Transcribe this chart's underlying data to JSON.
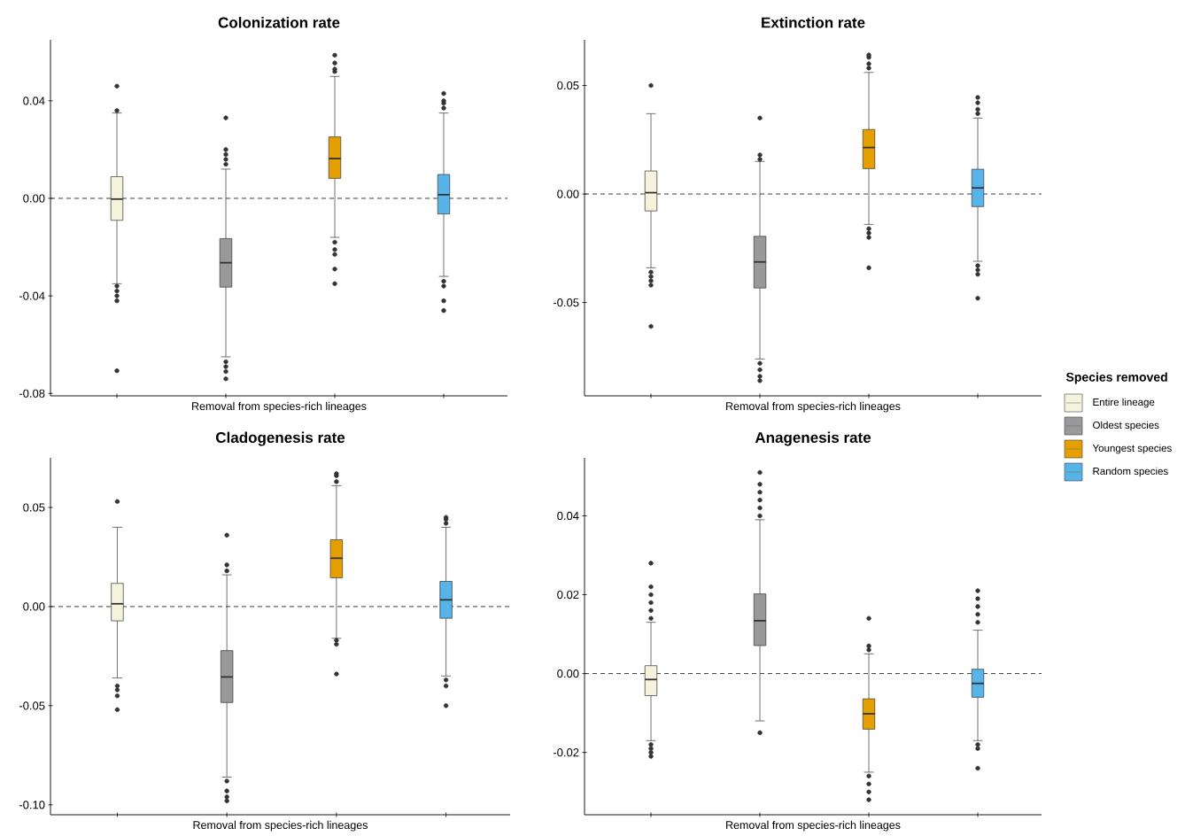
{
  "chart_data": [
    {
      "type": "box",
      "title": "Colonization rate",
      "xlabel": "Removal from species-rich lineages",
      "categories": [
        null,
        null,
        null,
        null
      ],
      "ylim": [
        -0.081,
        0.065
      ],
      "yticks": [
        {
          "value": -0.08,
          "label": "-0.08"
        },
        {
          "value": -0.04,
          "label": "-0.04"
        },
        {
          "value": 0,
          "label": "0.00"
        },
        {
          "value": 0.04,
          "label": "0.04"
        }
      ],
      "ref_lines": [
        {
          "axis": "y",
          "value": 0,
          "line_style": "dashed"
        }
      ],
      "series": [
        {
          "color": "#f4f4dc",
          "boxes": [
            {
              "low": -0.035,
              "q1": -0.009,
              "median": -0.0003,
              "q3": 0.0089,
              "high": 0.035,
              "outliers": [
                0.036,
                0.046,
                -0.036,
                -0.038,
                -0.04,
                -0.042,
                -0.0707
              ]
            },
            null,
            null,
            null
          ]
        },
        {
          "color": "#999999",
          "boxes": [
            null,
            {
              "low": -0.065,
              "q1": -0.0364,
              "median": -0.0264,
              "q3": -0.0165,
              "high": 0.012,
              "outliers": [
                0.014,
                0.016,
                0.018,
                0.02,
                0.033,
                -0.067,
                -0.069,
                -0.071,
                -0.074
              ]
            },
            null,
            null
          ]
        },
        {
          "color": "#e69f00",
          "boxes": [
            null,
            null,
            {
              "low": -0.016,
              "q1": 0.0082,
              "median": 0.0163,
              "q3": 0.0252,
              "high": 0.05,
              "outliers": [
                0.052,
                0.053,
                0.0555,
                0.0587,
                -0.018,
                -0.021,
                -0.023,
                -0.029,
                -0.035
              ]
            },
            null
          ]
        },
        {
          "color": "#56b4e9",
          "boxes": [
            null,
            null,
            null,
            {
              "low": -0.032,
              "q1": -0.0064,
              "median": 0.0015,
              "q3": 0.0098,
              "high": 0.035,
              "outliers": [
                0.037,
                0.039,
                0.04,
                0.043,
                -0.034,
                -0.036,
                -0.042,
                -0.046
              ]
            }
          ]
        }
      ]
    },
    {
      "type": "box",
      "title": "Extinction rate",
      "xlabel": "Removal from species-rich lineages",
      "categories": [
        null,
        null,
        null,
        null
      ],
      "legend": "right",
      "legend_title": "Species removed",
      "ylim": [
        -0.093,
        0.071
      ],
      "yticks": [
        {
          "value": -0.05,
          "label": "-0.05"
        },
        {
          "value": 0,
          "label": "0.00"
        },
        {
          "value": 0.05,
          "label": "0.05"
        }
      ],
      "ref_lines": [
        {
          "axis": "y",
          "value": 0,
          "line_style": "dashed"
        }
      ],
      "series": [
        {
          "name": "Entire lineage",
          "color": "#f4f4dc",
          "boxes": [
            {
              "low": -0.034,
              "q1": -0.0078,
              "median": 0.0006,
              "q3": 0.0106,
              "high": 0.037,
              "outliers": [
                0.05,
                -0.036,
                -0.038,
                -0.04,
                -0.042,
                -0.061
              ]
            },
            null,
            null,
            null
          ]
        },
        {
          "name": "Oldest species",
          "color": "#999999",
          "boxes": [
            null,
            {
              "low": -0.076,
              "q1": -0.0433,
              "median": -0.0313,
              "q3": -0.0195,
              "high": 0.015,
              "outliers": [
                0.016,
                0.018,
                0.035,
                -0.078,
                -0.081,
                -0.084,
                -0.086
              ]
            },
            null,
            null
          ]
        },
        {
          "name": "Youngest species",
          "color": "#e69f00",
          "boxes": [
            null,
            null,
            {
              "low": -0.014,
              "q1": 0.0117,
              "median": 0.0214,
              "q3": 0.0297,
              "high": 0.056,
              "outliers": [
                0.058,
                0.06,
                0.063,
                0.064,
                -0.016,
                -0.018,
                -0.02,
                -0.034
              ]
            },
            null
          ]
        },
        {
          "name": "Random species",
          "color": "#56b4e9",
          "boxes": [
            null,
            null,
            null,
            {
              "low": -0.031,
              "q1": -0.0058,
              "median": 0.0028,
              "q3": 0.0114,
              "high": 0.035,
              "outliers": [
                0.037,
                0.039,
                0.042,
                0.0445,
                -0.033,
                -0.035,
                -0.037,
                -0.048
              ]
            }
          ]
        }
      ]
    },
    {
      "type": "box",
      "title": "Cladogenesis rate",
      "xlabel": "Removal from species-rich lineages",
      "categories": [
        null,
        null,
        null,
        null
      ],
      "ylim": [
        -0.105,
        0.075
      ],
      "yticks": [
        {
          "value": -0.1,
          "label": "-0.10"
        },
        {
          "value": -0.05,
          "label": "-0.05"
        },
        {
          "value": 0,
          "label": "0.00"
        },
        {
          "value": 0.05,
          "label": "0.05"
        }
      ],
      "ref_lines": [
        {
          "axis": "y",
          "value": 0,
          "line_style": "dashed"
        }
      ],
      "series": [
        {
          "color": "#f4f4dc",
          "boxes": [
            {
              "low": -0.036,
              "q1": -0.0072,
              "median": 0.0014,
              "q3": 0.0117,
              "high": 0.04,
              "outliers": [
                0.053,
                -0.04,
                -0.042,
                -0.045,
                -0.052
              ]
            },
            null,
            null,
            null
          ]
        },
        {
          "color": "#999999",
          "boxes": [
            null,
            {
              "low": -0.086,
              "q1": -0.0484,
              "median": -0.0355,
              "q3": -0.0222,
              "high": 0.016,
              "outliers": [
                0.018,
                0.021,
                0.036,
                -0.088,
                -0.093,
                -0.096,
                -0.098
              ]
            },
            null,
            null
          ]
        },
        {
          "color": "#e69f00",
          "boxes": [
            null,
            null,
            {
              "low": -0.016,
              "q1": 0.0145,
              "median": 0.0244,
              "q3": 0.0337,
              "high": 0.061,
              "outliers": [
                0.063,
                0.066,
                0.067,
                -0.017,
                -0.019,
                -0.034
              ]
            },
            null
          ]
        },
        {
          "color": "#56b4e9",
          "boxes": [
            null,
            null,
            null,
            {
              "low": -0.035,
              "q1": -0.0059,
              "median": 0.0034,
              "q3": 0.0127,
              "high": 0.04,
              "outliers": [
                0.042,
                0.044,
                0.045,
                -0.037,
                -0.04,
                -0.05
              ]
            }
          ]
        }
      ]
    },
    {
      "type": "box",
      "title": "Anagenesis rate",
      "xlabel": "Removal from species-rich lineages",
      "categories": [
        null,
        null,
        null,
        null
      ],
      "ylim": [
        -0.0358,
        0.0547
      ],
      "yticks": [
        {
          "value": -0.02,
          "label": "-0.02"
        },
        {
          "value": 0,
          "label": "0.00"
        },
        {
          "value": 0.02,
          "label": "0.02"
        },
        {
          "value": 0.04,
          "label": "0.04"
        }
      ],
      "ref_lines": [
        {
          "axis": "y",
          "value": 0,
          "line_style": "dashed"
        }
      ],
      "series": [
        {
          "color": "#f4f4dc",
          "boxes": [
            {
              "low": -0.017,
              "q1": -0.0056,
              "median": -0.0015,
              "q3": 0.002,
              "high": 0.013,
              "outliers": [
                0.014,
                0.016,
                0.018,
                0.02,
                0.022,
                0.028,
                -0.018,
                -0.019,
                -0.02,
                -0.021
              ]
            },
            null,
            null,
            null
          ]
        },
        {
          "color": "#999999",
          "boxes": [
            null,
            {
              "low": -0.012,
              "q1": 0.0071,
              "median": 0.0134,
              "q3": 0.0202,
              "high": 0.039,
              "outliers": [
                0.04,
                0.042,
                0.044,
                0.046,
                0.048,
                0.051,
                -0.015
              ]
            },
            null,
            null
          ]
        },
        {
          "color": "#e69f00",
          "boxes": [
            null,
            null,
            {
              "low": -0.025,
              "q1": -0.0141,
              "median": -0.0102,
              "q3": -0.0064,
              "high": 0.005,
              "outliers": [
                0.006,
                0.007,
                0.014,
                -0.026,
                -0.028,
                -0.03,
                -0.032
              ]
            },
            null
          ]
        },
        {
          "color": "#56b4e9",
          "boxes": [
            null,
            null,
            null,
            {
              "low": -0.017,
              "q1": -0.006,
              "median": -0.0025,
              "q3": 0.0011,
              "high": 0.011,
              "outliers": [
                0.013,
                0.015,
                0.017,
                0.019,
                0.021,
                -0.018,
                -0.019,
                -0.024
              ]
            }
          ]
        }
      ]
    }
  ]
}
